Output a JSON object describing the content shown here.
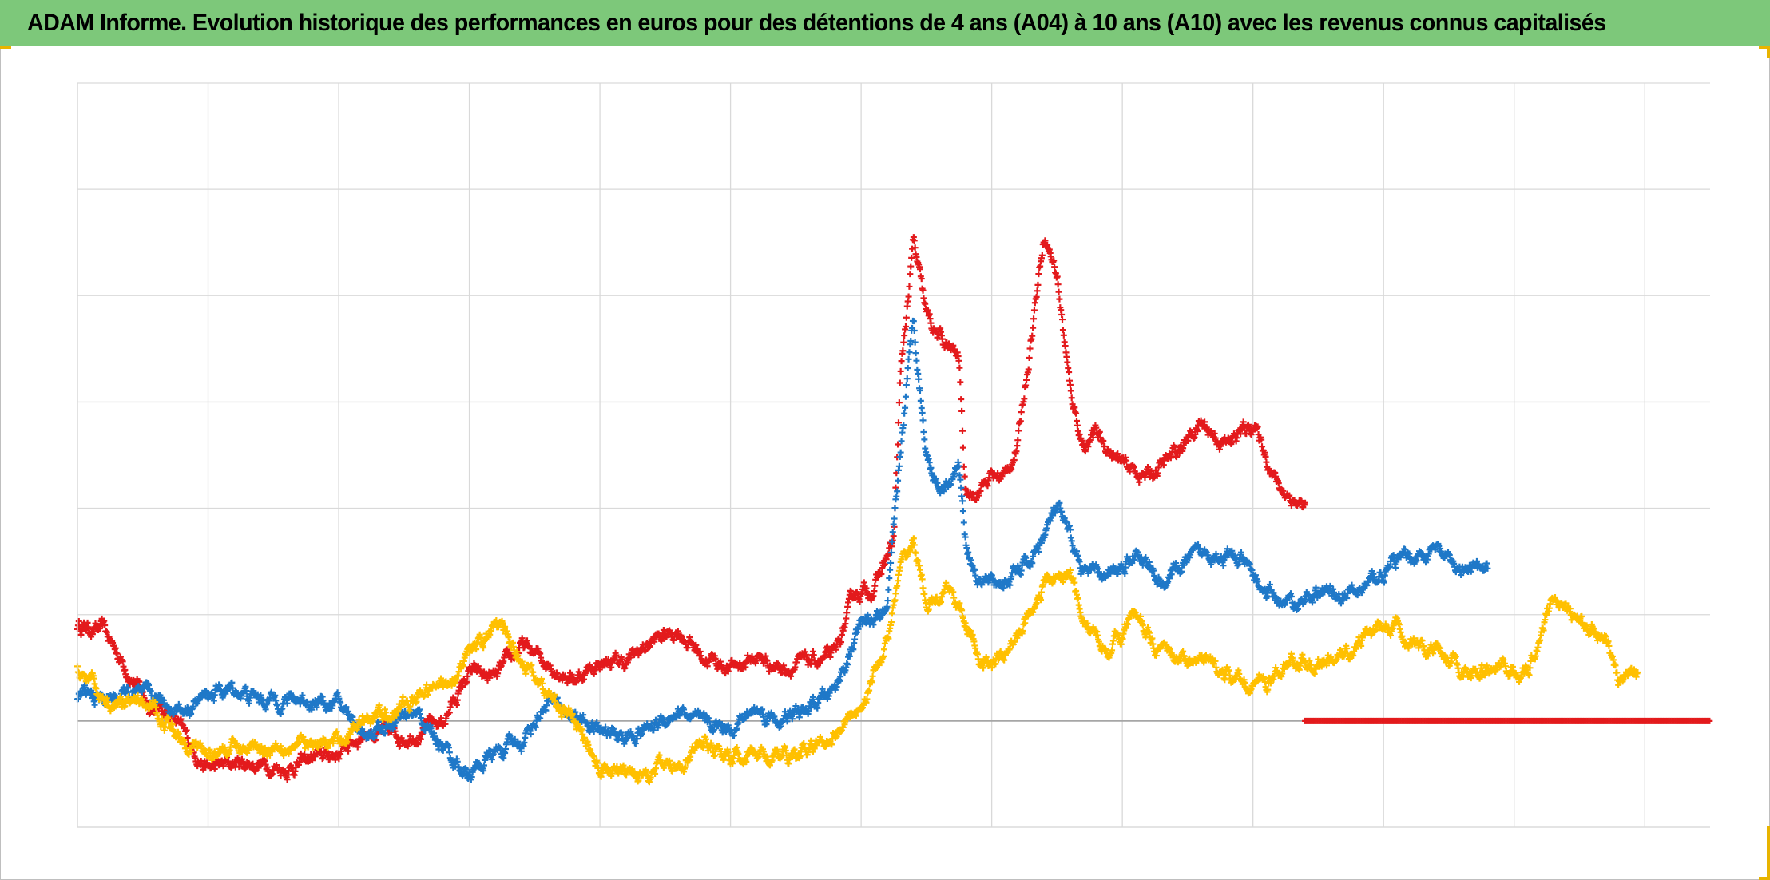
{
  "title": "ADAM Informe. Evolution historique des performances en euros pour des détentions de 4 ans (A04) à 10 ans (A10) avec les revenus connus capitalisés",
  "colors": {
    "header_bg": "#7dc87a",
    "corner_accent": "#e8b400",
    "grid": "#d9d9d9",
    "zero_line": "#a6a6a6"
  },
  "chart_data": {
    "type": "scatter",
    "marker": "plus",
    "title": "ADAM Informe. Evolution historique des performances en euros pour des détentions de 4 ans (A04) à 10 ans (A10) avec les revenus connus capitalisés",
    "xlabel": "",
    "ylabel": "",
    "xlim": [
      0,
      12.5
    ],
    "ylim": [
      -1,
      6
    ],
    "grid": true,
    "legend": "none",
    "tick_labels_shown": false,
    "reference_line_y": 0,
    "series": [
      {
        "color": "#e31a1c",
        "points": [
          [
            0.0,
            0.9
          ],
          [
            0.2,
            0.85
          ],
          [
            0.4,
            0.45
          ],
          [
            0.55,
            0.15
          ],
          [
            0.7,
            0.1
          ],
          [
            0.85,
            -0.2
          ],
          [
            1.0,
            -0.45
          ],
          [
            1.2,
            -0.4
          ],
          [
            1.4,
            -0.4
          ],
          [
            1.6,
            -0.45
          ],
          [
            1.8,
            -0.35
          ],
          [
            2.0,
            -0.3
          ],
          [
            2.2,
            -0.1
          ],
          [
            2.5,
            -0.15
          ],
          [
            2.8,
            0.0
          ],
          [
            3.0,
            0.45
          ],
          [
            3.2,
            0.4
          ],
          [
            3.4,
            0.7
          ],
          [
            3.6,
            0.55
          ],
          [
            3.8,
            0.4
          ],
          [
            4.0,
            0.55
          ],
          [
            4.2,
            0.55
          ],
          [
            4.4,
            0.75
          ],
          [
            4.6,
            0.85
          ],
          [
            4.8,
            0.6
          ],
          [
            5.0,
            0.5
          ],
          [
            5.2,
            0.6
          ],
          [
            5.4,
            0.5
          ],
          [
            5.6,
            0.55
          ],
          [
            5.8,
            0.6
          ],
          [
            5.95,
            1.2
          ],
          [
            6.1,
            1.25
          ],
          [
            6.25,
            1.7
          ],
          [
            6.3,
            3.2
          ],
          [
            6.4,
            4.5
          ],
          [
            6.5,
            3.8
          ],
          [
            6.6,
            3.6
          ],
          [
            6.75,
            3.4
          ],
          [
            6.8,
            2.1
          ],
          [
            6.9,
            2.2
          ],
          [
            7.0,
            2.3
          ],
          [
            7.1,
            2.3
          ],
          [
            7.2,
            2.6
          ],
          [
            7.3,
            3.6
          ],
          [
            7.4,
            4.6
          ],
          [
            7.5,
            4.2
          ],
          [
            7.6,
            3.1
          ],
          [
            7.7,
            2.6
          ],
          [
            7.8,
            2.7
          ],
          [
            8.0,
            2.4
          ],
          [
            8.2,
            2.3
          ],
          [
            8.4,
            2.5
          ],
          [
            8.6,
            2.8
          ],
          [
            8.8,
            2.6
          ],
          [
            9.0,
            2.8
          ],
          [
            9.2,
            2.2
          ],
          [
            9.4,
            2.0
          ]
        ]
      },
      {
        "color": "#1f78c8",
        "points": [
          [
            0.0,
            0.25
          ],
          [
            0.2,
            0.2
          ],
          [
            0.4,
            0.25
          ],
          [
            0.6,
            0.2
          ],
          [
            0.8,
            0.1
          ],
          [
            1.0,
            0.25
          ],
          [
            1.2,
            0.3
          ],
          [
            1.4,
            0.2
          ],
          [
            1.6,
            0.2
          ],
          [
            1.8,
            0.2
          ],
          [
            2.0,
            0.15
          ],
          [
            2.2,
            -0.1
          ],
          [
            2.4,
            -0.05
          ],
          [
            2.6,
            0.05
          ],
          [
            2.8,
            -0.25
          ],
          [
            3.0,
            -0.5
          ],
          [
            3.2,
            -0.3
          ],
          [
            3.4,
            -0.2
          ],
          [
            3.6,
            0.2
          ],
          [
            3.8,
            0.05
          ],
          [
            4.0,
            -0.1
          ],
          [
            4.2,
            -0.15
          ],
          [
            4.4,
            -0.05
          ],
          [
            4.6,
            0.1
          ],
          [
            4.8,
            -0.05
          ],
          [
            5.0,
            -0.05
          ],
          [
            5.2,
            0.1
          ],
          [
            5.4,
            0.0
          ],
          [
            5.6,
            0.1
          ],
          [
            5.8,
            0.3
          ],
          [
            6.0,
            0.9
          ],
          [
            6.2,
            1.0
          ],
          [
            6.3,
            2.5
          ],
          [
            6.4,
            3.8
          ],
          [
            6.5,
            2.5
          ],
          [
            6.6,
            2.2
          ],
          [
            6.75,
            2.4
          ],
          [
            6.8,
            1.7
          ],
          [
            6.9,
            1.3
          ],
          [
            7.1,
            1.3
          ],
          [
            7.3,
            1.5
          ],
          [
            7.5,
            2.0
          ],
          [
            7.7,
            1.4
          ],
          [
            7.9,
            1.35
          ],
          [
            8.1,
            1.6
          ],
          [
            8.3,
            1.3
          ],
          [
            8.5,
            1.5
          ],
          [
            8.7,
            1.6
          ],
          [
            8.9,
            1.5
          ],
          [
            9.1,
            1.2
          ],
          [
            9.3,
            1.1
          ],
          [
            9.5,
            1.2
          ],
          [
            9.8,
            1.2
          ],
          [
            10.1,
            1.5
          ],
          [
            10.4,
            1.6
          ],
          [
            10.6,
            1.4
          ],
          [
            10.8,
            1.4
          ]
        ]
      },
      {
        "color": "#ffc000",
        "points": [
          [
            0.0,
            0.5
          ],
          [
            0.2,
            0.2
          ],
          [
            0.4,
            0.15
          ],
          [
            0.6,
            0.1
          ],
          [
            0.8,
            -0.15
          ],
          [
            1.0,
            -0.3
          ],
          [
            1.2,
            -0.25
          ],
          [
            1.4,
            -0.25
          ],
          [
            1.6,
            -0.2
          ],
          [
            1.8,
            -0.25
          ],
          [
            2.0,
            -0.2
          ],
          [
            2.2,
            0.05
          ],
          [
            2.4,
            0.1
          ],
          [
            2.6,
            0.2
          ],
          [
            2.8,
            0.35
          ],
          [
            3.0,
            0.6
          ],
          [
            3.2,
            0.9
          ],
          [
            3.4,
            0.6
          ],
          [
            3.6,
            0.25
          ],
          [
            3.8,
            0.0
          ],
          [
            4.0,
            -0.45
          ],
          [
            4.2,
            -0.5
          ],
          [
            4.4,
            -0.45
          ],
          [
            4.6,
            -0.4
          ],
          [
            4.8,
            -0.2
          ],
          [
            5.0,
            -0.35
          ],
          [
            5.2,
            -0.3
          ],
          [
            5.4,
            -0.35
          ],
          [
            5.6,
            -0.3
          ],
          [
            5.8,
            -0.1
          ],
          [
            6.0,
            0.15
          ],
          [
            6.2,
            0.75
          ],
          [
            6.3,
            1.4
          ],
          [
            6.4,
            1.7
          ],
          [
            6.5,
            1.1
          ],
          [
            6.7,
            1.2
          ],
          [
            6.9,
            0.6
          ],
          [
            7.0,
            0.5
          ],
          [
            7.2,
            0.8
          ],
          [
            7.4,
            1.3
          ],
          [
            7.6,
            1.4
          ],
          [
            7.7,
            0.9
          ],
          [
            7.9,
            0.7
          ],
          [
            8.1,
            1.0
          ],
          [
            8.3,
            0.65
          ],
          [
            8.5,
            0.6
          ],
          [
            8.7,
            0.5
          ],
          [
            8.9,
            0.35
          ],
          [
            9.1,
            0.35
          ],
          [
            9.3,
            0.55
          ],
          [
            9.5,
            0.55
          ],
          [
            9.7,
            0.6
          ],
          [
            9.9,
            0.85
          ],
          [
            10.1,
            0.9
          ],
          [
            10.3,
            0.65
          ],
          [
            10.5,
            0.55
          ],
          [
            10.7,
            0.45
          ],
          [
            10.9,
            0.5
          ],
          [
            11.1,
            0.45
          ],
          [
            11.3,
            1.2
          ],
          [
            11.5,
            0.9
          ],
          [
            11.7,
            0.85
          ],
          [
            11.8,
            0.35
          ],
          [
            11.95,
            0.45
          ]
        ]
      },
      {
        "color": "#e31a1c",
        "points": [
          [
            9.4,
            0.0
          ],
          [
            10.0,
            0.0
          ],
          [
            10.5,
            0.0
          ],
          [
            11.0,
            0.0
          ],
          [
            11.5,
            0.0
          ],
          [
            12.0,
            0.0
          ],
          [
            12.5,
            0.0
          ]
        ]
      }
    ]
  }
}
